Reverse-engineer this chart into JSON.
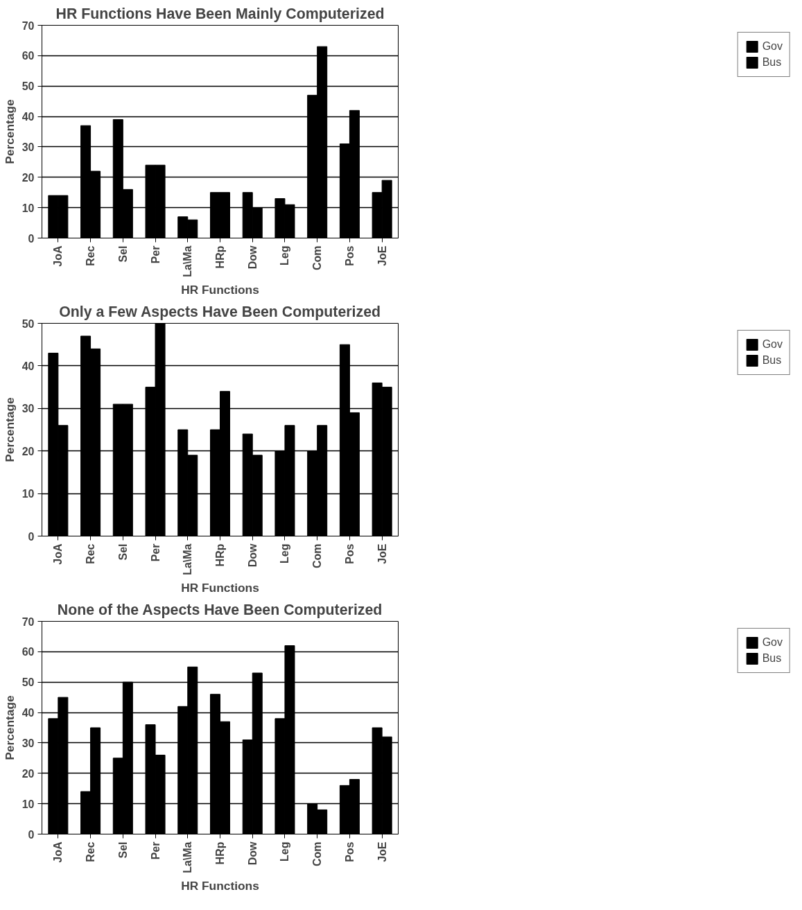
{
  "chart_data": [
    {
      "type": "bar",
      "title": "HR Functions Have Been Mainly Computerized",
      "xlabel": "HR Functions",
      "ylabel": "Percentage",
      "categories": [
        "JoA",
        "Rec",
        "Sel",
        "Per",
        "La\\Ma",
        "HRp",
        "Dow",
        "Leg",
        "Com",
        "Pos",
        "JoE"
      ],
      "series": [
        {
          "name": "Gov",
          "color": "#000000",
          "values": [
            14,
            37,
            39,
            24,
            7,
            15,
            15,
            13,
            47,
            31,
            15
          ]
        },
        {
          "name": "Bus",
          "color": "#000000",
          "values": [
            14,
            22,
            16,
            24,
            6,
            15,
            10,
            11,
            63,
            42,
            19
          ]
        }
      ],
      "ylim": [
        0,
        70
      ],
      "yticks": [
        0,
        10,
        20,
        30,
        40,
        50,
        60,
        70
      ],
      "grid": "y",
      "legend": "right"
    },
    {
      "type": "bar",
      "title": "Only a Few Aspects Have Been Computerized",
      "xlabel": "HR Functions",
      "ylabel": "Percentage",
      "categories": [
        "JoA",
        "Rec",
        "Sel",
        "Per",
        "La\\Ma",
        "HRp",
        "Dow",
        "Leg",
        "Com",
        "Pos",
        "JoE"
      ],
      "series": [
        {
          "name": "Gov",
          "color": "#000000",
          "values": [
            43,
            47,
            31,
            35,
            25,
            25,
            24,
            20,
            20,
            45,
            36
          ]
        },
        {
          "name": "Bus",
          "color": "#000000",
          "values": [
            26,
            44,
            31,
            50,
            19,
            34,
            19,
            26,
            26,
            29,
            35
          ]
        }
      ],
      "ylim": [
        0,
        50
      ],
      "yticks": [
        0,
        10,
        20,
        30,
        40,
        50
      ],
      "grid": "y",
      "legend": "right"
    },
    {
      "type": "bar",
      "title": "None of the Aspects Have Been Computerized",
      "xlabel": "HR Functions",
      "ylabel": "Percentage",
      "categories": [
        "JoA",
        "Rec",
        "Sel",
        "Per",
        "La\\Ma",
        "HRp",
        "Dow",
        "Leg",
        "Com",
        "Pos",
        "JoE"
      ],
      "series": [
        {
          "name": "Gov",
          "color": "#000000",
          "values": [
            38,
            14,
            25,
            36,
            42,
            46,
            31,
            38,
            10,
            16,
            35
          ]
        },
        {
          "name": "Bus",
          "color": "#000000",
          "values": [
            45,
            35,
            50,
            26,
            55,
            37,
            53,
            62,
            8,
            18,
            32
          ]
        }
      ],
      "ylim": [
        0,
        70
      ],
      "yticks": [
        0,
        10,
        20,
        30,
        40,
        50,
        60,
        70
      ],
      "grid": "y",
      "legend": "right"
    }
  ]
}
